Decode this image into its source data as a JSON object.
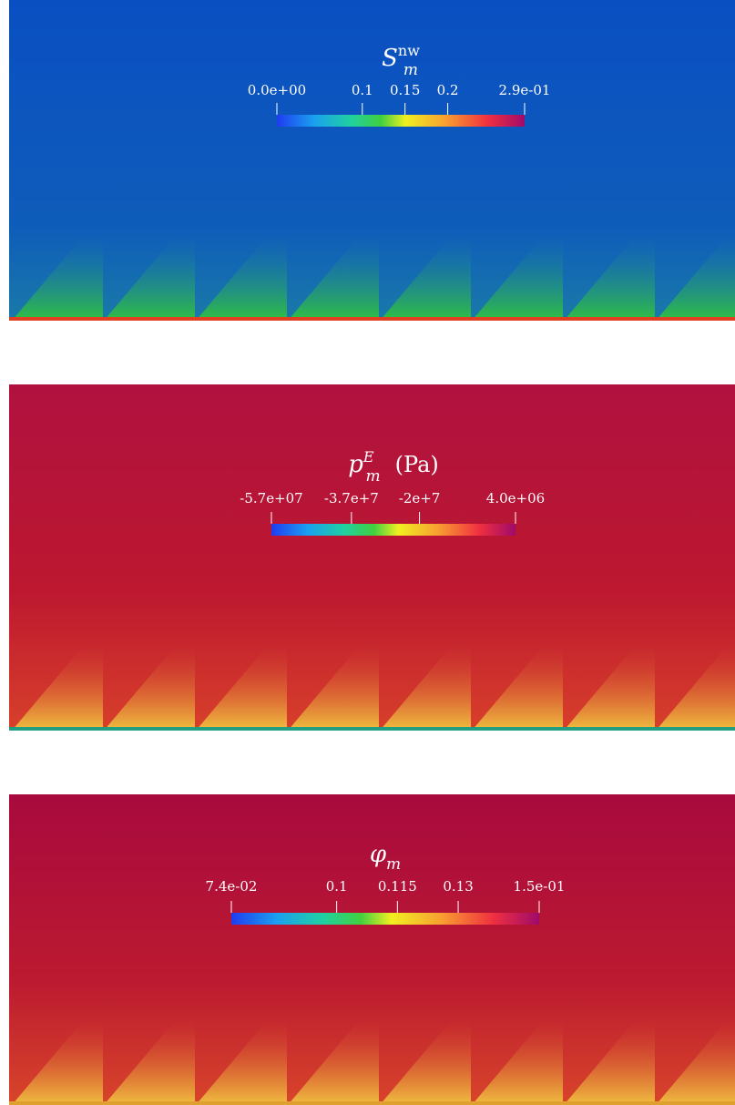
{
  "panels": [
    {
      "title": {
        "symbol": "S",
        "subscript": "m",
        "superscript": "nw"
      },
      "colorbar": {
        "range": [
          0,
          0.29
        ],
        "ticks": [
          {
            "value": 0,
            "label": "0.0e+00"
          },
          0.1,
          0.15,
          0.2,
          {
            "value": 0.29,
            "label": "2.9e-01"
          }
        ]
      }
    },
    {
      "title": {
        "symbol": "p",
        "subscript": "m",
        "superscript": "E",
        "unit": "(Pa)"
      },
      "colorbar": {
        "range": [
          -57000000,
          4000000
        ],
        "ticks": [
          {
            "value": -57000000,
            "label": "-5.7e+07"
          },
          {
            "value": -37000000,
            "label": "-3.7e+7"
          },
          {
            "value": -20000000,
            "label": "-2e+7"
          },
          {
            "value": 4000000,
            "label": "4.0e+06"
          }
        ]
      }
    },
    {
      "title": {
        "symbol": "φ",
        "subscript": "m"
      },
      "colorbar": {
        "range": [
          0.074,
          0.15
        ],
        "ticks": [
          {
            "value": 0.074,
            "label": "7.4e-02"
          },
          0.1,
          0.115,
          0.13,
          {
            "value": 0.15,
            "label": "1.5e-01"
          }
        ]
      }
    }
  ]
}
